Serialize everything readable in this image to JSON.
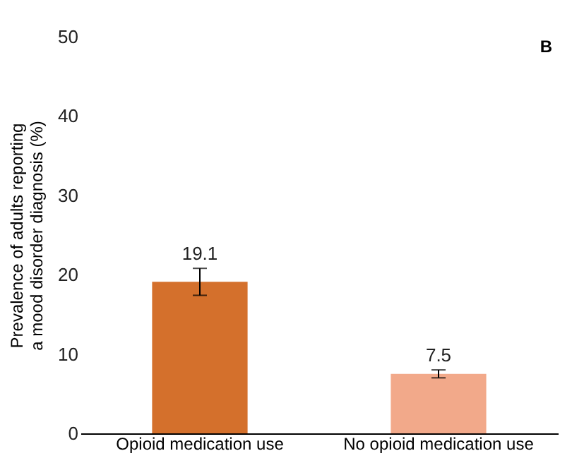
{
  "chart_data": {
    "type": "bar",
    "categories": [
      "Opioid medication use",
      "No opioid medication use"
    ],
    "values": [
      19.1,
      7.5
    ],
    "colors": [
      "#d4702c",
      "#f2a98a"
    ],
    "errors": [
      [
        17.4,
        20.8
      ],
      [
        7.0,
        8.0
      ]
    ],
    "ylabel": "Prevalence of adults reporting a mood disorder diagnosis (%)",
    "ylim": [
      0,
      50
    ],
    "yticks": [
      0,
      10,
      20,
      30,
      40,
      50
    ],
    "data_labels": true,
    "grid": false,
    "annotations": [
      "B"
    ]
  }
}
